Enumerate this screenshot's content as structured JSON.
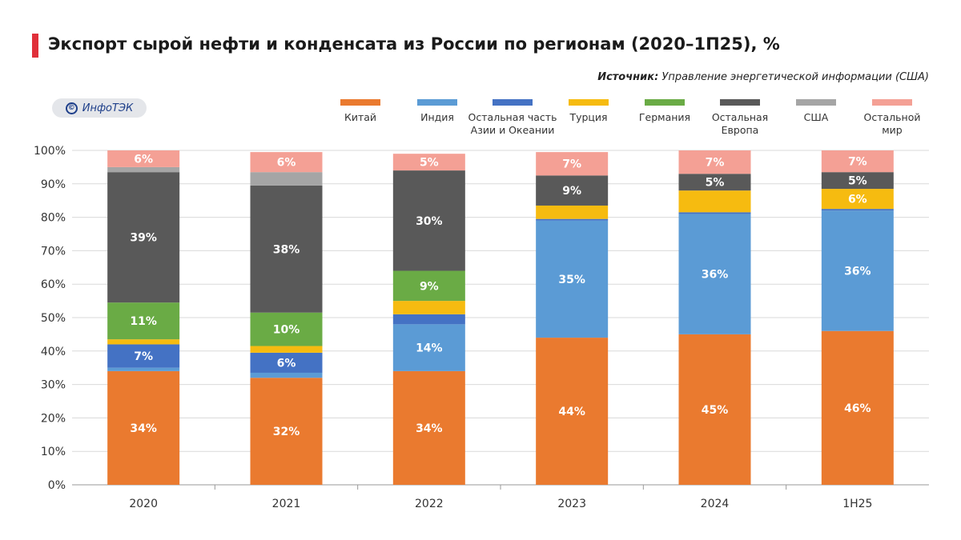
{
  "header": {
    "title": "Экспорт сырой нефти и конденсата из России по регионам (2020–1П25), %",
    "source_label": "Источник:",
    "source_text": "Управление энергетической информации (США)",
    "logo_text": "ИнфоТЭК",
    "logo_symbol": "©"
  },
  "colors": {
    "title_accent": "#e0303a",
    "grid": "#d9d9d9",
    "axis_text": "#333333"
  },
  "chart_data": {
    "type": "bar",
    "stacked": true,
    "categories": [
      "2020",
      "2021",
      "2022",
      "2023",
      "2024",
      "1H25"
    ],
    "y_ticks": [
      "0%",
      "10%",
      "20%",
      "30%",
      "40%",
      "50%",
      "60%",
      "70%",
      "80%",
      "90%",
      "100%"
    ],
    "ylim": [
      0,
      100
    ],
    "grid": true,
    "legend_position": "top",
    "series": [
      {
        "name": "Китай",
        "color": "#ea7a2f",
        "values": [
          34,
          32,
          34,
          44,
          45,
          46
        ],
        "labels": [
          "34%",
          "32%",
          "34%",
          "44%",
          "45%",
          "46%"
        ]
      },
      {
        "name": "Индия",
        "color": "#5b9bd5",
        "values": [
          1,
          1.5,
          14,
          35,
          36,
          36
        ],
        "labels": [
          "",
          "",
          "14%",
          "35%",
          "36%",
          "36%"
        ]
      },
      {
        "name": "Остальная часть Азии и Океании",
        "color": "#4472c4",
        "values": [
          7,
          6,
          3,
          0.5,
          0.5,
          0.5
        ],
        "labels": [
          "7%",
          "6%",
          "",
          "",
          "",
          ""
        ]
      },
      {
        "name": "Турция",
        "color": "#f6bb10",
        "values": [
          1.5,
          2,
          4,
          4,
          6.5,
          6
        ],
        "labels": [
          "",
          "",
          "",
          "",
          "",
          "6%"
        ]
      },
      {
        "name": "Германия",
        "color": "#6aab45",
        "values": [
          11,
          10,
          9,
          0,
          0,
          0
        ],
        "labels": [
          "11%",
          "10%",
          "9%",
          "",
          "",
          ""
        ]
      },
      {
        "name": "Остальная Европа",
        "color": "#595959",
        "values": [
          39,
          38,
          30,
          9,
          5,
          5
        ],
        "labels": [
          "39%",
          "38%",
          "30%",
          "9%",
          "5%",
          "5%"
        ]
      },
      {
        "name": "США",
        "color": "#a5a5a5",
        "values": [
          1.5,
          4,
          0,
          0,
          0,
          0
        ],
        "labels": [
          "",
          "",
          "",
          "",
          "",
          ""
        ]
      },
      {
        "name": "Остальной мир",
        "color": "#f4a095",
        "values": [
          6,
          6,
          5,
          7,
          7,
          7
        ],
        "labels": [
          "6%",
          "6%",
          "5%",
          "7%",
          "7%",
          "7%"
        ]
      }
    ]
  }
}
